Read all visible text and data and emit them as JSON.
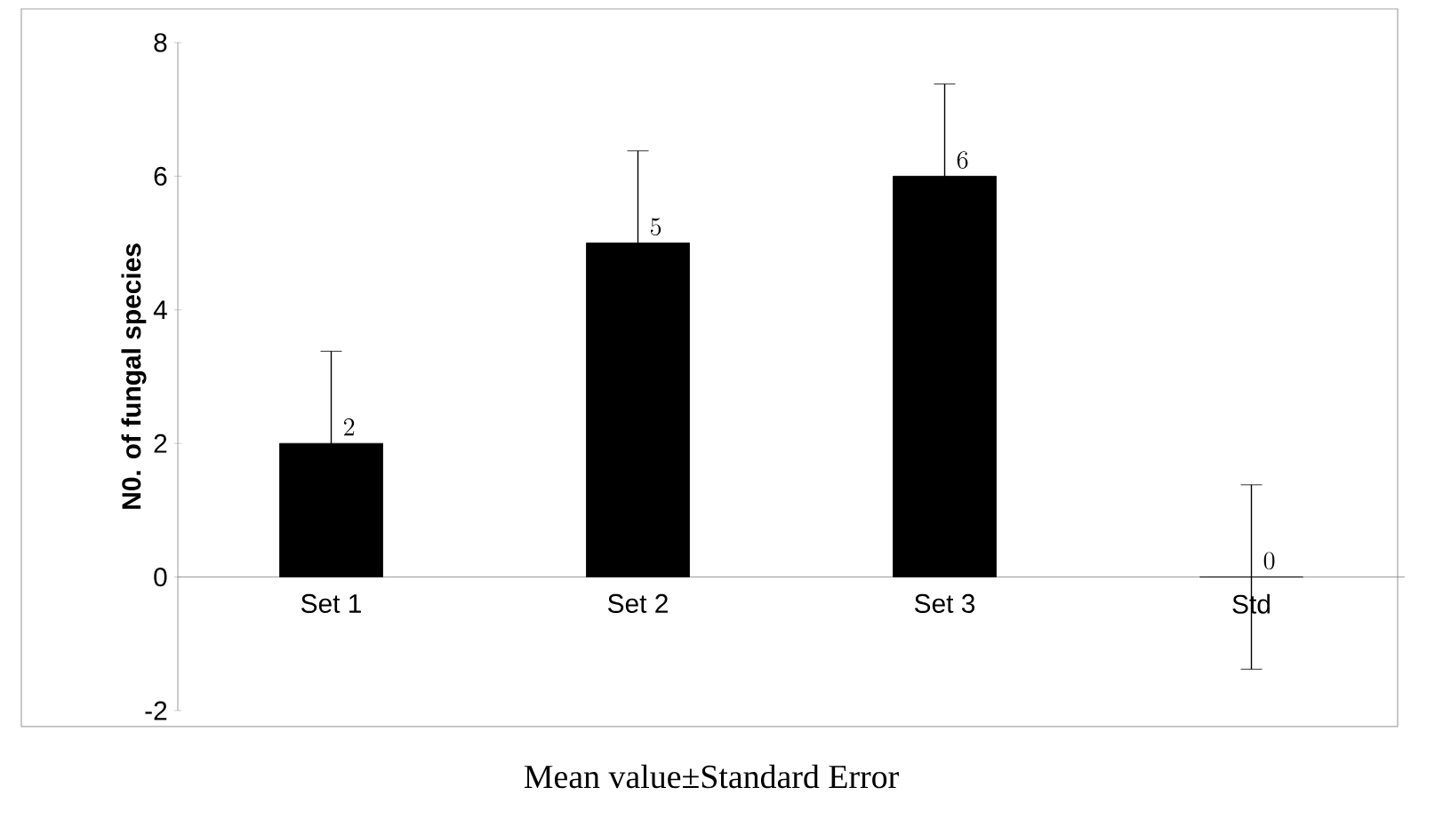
{
  "chart_data": {
    "type": "bar",
    "categories": [
      "Set 1",
      "Set 2",
      "Set 3",
      "Std"
    ],
    "values": [
      2,
      5,
      6,
      0
    ],
    "errors": [
      1.38,
      1.38,
      1.38,
      1.38
    ],
    "color": "#000000",
    "ylabel": "N0. of fungal species",
    "xlabel": "Mean value±Standard Error",
    "ylim": [
      -2,
      8
    ],
    "yticks": [
      -2,
      0,
      2,
      4,
      6,
      8
    ],
    "data_labels": true,
    "grid": false
  }
}
